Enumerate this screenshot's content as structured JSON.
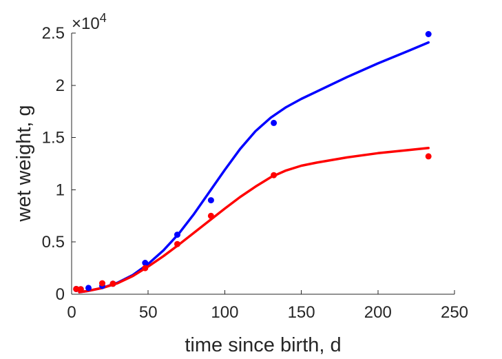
{
  "chart_data": {
    "type": "scatter",
    "title": "",
    "xlabel": "time since birth, d",
    "ylabel": "wet weight, g",
    "y_exponent_label": "×10",
    "y_exponent_power": "4",
    "xlim": [
      0,
      250
    ],
    "ylim": [
      0,
      25000
    ],
    "xticks": [
      0,
      50,
      100,
      150,
      200,
      250
    ],
    "xtick_labels": [
      "0",
      "50",
      "100",
      "150",
      "200",
      "250"
    ],
    "yticks": [
      0,
      5000,
      10000,
      15000,
      20000,
      25000
    ],
    "ytick_labels": [
      "0",
      "0.5",
      "1",
      "1.5",
      "2",
      "2.5"
    ],
    "grid": false,
    "series": [
      {
        "color": "#0000ff",
        "points": [
          [
            3,
            500
          ],
          [
            6,
            480
          ],
          [
            11,
            600
          ],
          [
            20,
            800
          ],
          [
            27,
            1000
          ],
          [
            48,
            3000
          ],
          [
            69,
            5700
          ],
          [
            91,
            9000
          ],
          [
            132,
            16400
          ],
          [
            233,
            24900
          ]
        ],
        "curve": [
          [
            5,
            200
          ],
          [
            10,
            300
          ],
          [
            20,
            600
          ],
          [
            30,
            1100
          ],
          [
            40,
            1850
          ],
          [
            50,
            2900
          ],
          [
            60,
            4200
          ],
          [
            70,
            5800
          ],
          [
            80,
            7700
          ],
          [
            90,
            9800
          ],
          [
            100,
            11900
          ],
          [
            110,
            13900
          ],
          [
            120,
            15600
          ],
          [
            130,
            16900
          ],
          [
            140,
            17900
          ],
          [
            150,
            18700
          ],
          [
            160,
            19400
          ],
          [
            180,
            20800
          ],
          [
            200,
            22100
          ],
          [
            220,
            23300
          ],
          [
            233,
            24100
          ]
        ]
      },
      {
        "color": "#ff0000",
        "points": [
          [
            3,
            500
          ],
          [
            6,
            480
          ],
          [
            20,
            1050
          ],
          [
            27,
            1000
          ],
          [
            48,
            2500
          ],
          [
            69,
            4800
          ],
          [
            91,
            7500
          ],
          [
            132,
            11400
          ],
          [
            233,
            13200
          ]
        ],
        "curve": [
          [
            5,
            200
          ],
          [
            10,
            300
          ],
          [
            20,
            600
          ],
          [
            30,
            1050
          ],
          [
            40,
            1750
          ],
          [
            50,
            2650
          ],
          [
            60,
            3650
          ],
          [
            70,
            4750
          ],
          [
            80,
            5900
          ],
          [
            90,
            7050
          ],
          [
            100,
            8200
          ],
          [
            110,
            9300
          ],
          [
            120,
            10300
          ],
          [
            130,
            11200
          ],
          [
            140,
            11850
          ],
          [
            150,
            12300
          ],
          [
            160,
            12600
          ],
          [
            180,
            13100
          ],
          [
            200,
            13500
          ],
          [
            220,
            13800
          ],
          [
            233,
            14000
          ]
        ]
      }
    ]
  }
}
